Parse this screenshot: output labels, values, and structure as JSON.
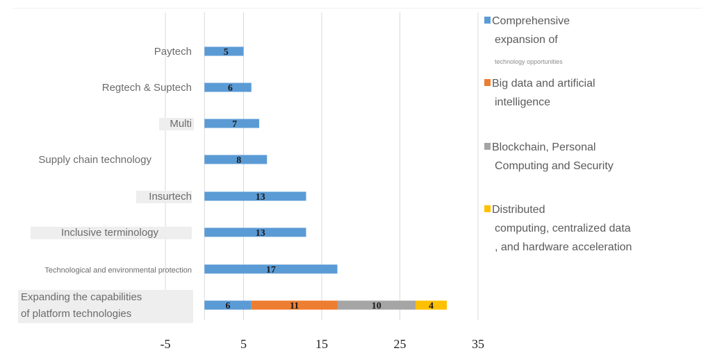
{
  "chart_data": {
    "type": "bar",
    "orientation": "horizontal",
    "stacked": true,
    "categories": [
      "Paytech",
      "Regtech & Suptech",
      "Multi",
      "Supply chain technology",
      "Insurtech",
      "Inclusive terminology",
      "Technological and environmental protection",
      "Expanding the capabilities of platform technologies"
    ],
    "category_lines": [
      [
        "Paytech"
      ],
      [
        "Regtech & Suptech"
      ],
      [
        "Multi"
      ],
      [
        "Supply chain technology"
      ],
      [
        "Insurtech"
      ],
      [
        "Inclusive terminology"
      ],
      [
        "Technological and environmental protection"
      ],
      [
        "Expanding the capabilities",
        "of platform technologies"
      ]
    ],
    "series": [
      {
        "name": "Comprehensive expansion of technology opportunities",
        "color": "#5b9bd5",
        "values": [
          5,
          6,
          7,
          8,
          13,
          13,
          17,
          6
        ]
      },
      {
        "name": "Big data and artificial intelligence",
        "color": "#ed7d31",
        "values": [
          0,
          0,
          0,
          0,
          0,
          0,
          0,
          11
        ]
      },
      {
        "name": "Blockchain, Personal Computing and Security",
        "color": "#a5a5a5",
        "values": [
          0,
          0,
          0,
          0,
          0,
          0,
          0,
          10
        ]
      },
      {
        "name": "Distributed computing, centralized data, and hardware acceleration",
        "color": "#ffc000",
        "values": [
          0,
          0,
          0,
          0,
          0,
          0,
          0,
          4
        ]
      }
    ],
    "xlim": [
      -5,
      35
    ],
    "xticks": [
      "-5",
      "5",
      "15",
      "25",
      "35"
    ],
    "xtick_values": [
      -5,
      5,
      15,
      25,
      35
    ],
    "grid": true,
    "legend_position": "right",
    "legend": [
      {
        "lines": [
          "Comprehensive",
          "expansion of"
        ],
        "small": "technology opportunities",
        "color": "#5b9bd5"
      },
      {
        "lines": [
          "Big data and artificial",
          "intelligence"
        ],
        "color": "#ed7d31"
      },
      {
        "lines": [
          "Blockchain, Personal",
          "Computing and Security"
        ],
        "color": "#a5a5a5"
      },
      {
        "lines": [
          "Distributed",
          "computing, centralized data",
          ", and hardware acceleration"
        ],
        "color": "#ffc000"
      }
    ]
  }
}
